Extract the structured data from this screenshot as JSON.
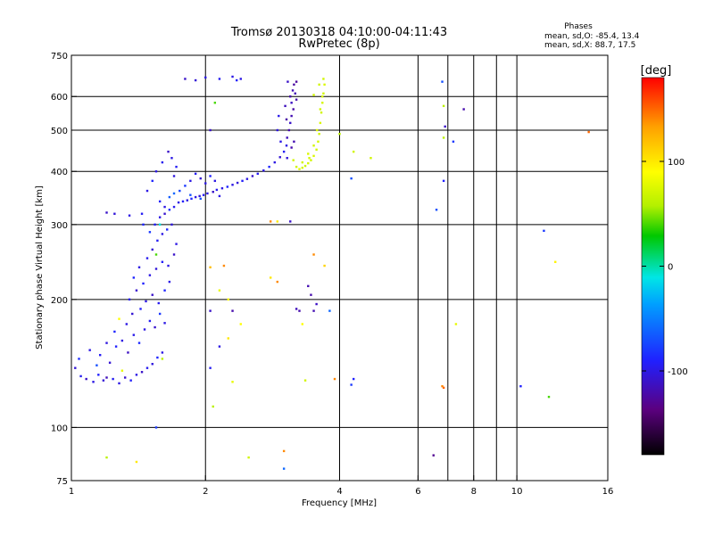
{
  "chart_data": {
    "type": "scatter",
    "title": "Tromsø 20130318 04:10:00-04:11:43",
    "subtitle": "RwPretec (8p)",
    "legend_title": "Phases",
    "legend_lines": [
      "mean, sd,O: -85.4, 13.4",
      "mean, sd,X:  88.7, 17.5"
    ],
    "xlabel": "Frequency [MHz]",
    "ylabel": "Stationary phase Virtual Height [km]",
    "x_scale": "log",
    "y_scale": "log",
    "xlim": [
      1,
      16
    ],
    "ylim": [
      75,
      750
    ],
    "x_ticks": [
      1,
      2,
      4,
      6,
      8,
      10,
      16
    ],
    "x_tick_labels": [
      "1",
      "2",
      "4",
      "6",
      "8",
      "10",
      "16"
    ],
    "x_grid": [
      2,
      4,
      6,
      7,
      8,
      9,
      10
    ],
    "y_ticks": [
      75,
      100,
      200,
      300,
      400,
      500,
      600,
      750
    ],
    "y_tick_labels": [
      "75",
      "100",
      "200",
      "300",
      "400",
      "500",
      "600",
      "750"
    ],
    "y_grid": [
      100,
      200,
      300,
      400,
      500,
      600
    ],
    "grid": true,
    "colorbar": {
      "label": "[deg]",
      "range": [
        -180,
        180
      ],
      "ticks": [
        100,
        0,
        -100
      ],
      "tick_labels": [
        "100",
        "0",
        "-100"
      ],
      "colors": [
        "#000000",
        "#5b007f",
        "#2020ff",
        "#00a0ff",
        "#00e6e6",
        "#00c800",
        "#b4f000",
        "#ffff00",
        "#ffa000",
        "#ff0000"
      ],
      "stops": [
        0,
        0.12,
        0.25,
        0.4,
        0.47,
        0.58,
        0.66,
        0.75,
        0.87,
        1
      ]
    },
    "series": [
      {
        "points": [
          [
            1.02,
            138,
            -105
          ],
          [
            1.05,
            132,
            -95
          ],
          [
            1.08,
            130,
            -110
          ],
          [
            1.12,
            128,
            -100
          ],
          [
            1.15,
            133,
            -90
          ],
          [
            1.18,
            129,
            -105
          ],
          [
            1.2,
            131,
            -115
          ],
          [
            1.24,
            130,
            -95
          ],
          [
            1.28,
            127,
            -100
          ],
          [
            1.32,
            131,
            -108
          ],
          [
            1.36,
            129,
            -92
          ],
          [
            1.4,
            133,
            -100
          ],
          [
            1.44,
            135,
            -110
          ],
          [
            1.48,
            138,
            -96
          ],
          [
            1.52,
            141,
            -102
          ],
          [
            1.56,
            146,
            -88
          ],
          [
            1.6,
            150,
            -100
          ],
          [
            1.04,
            145,
            -85
          ],
          [
            1.1,
            152,
            -100
          ],
          [
            1.16,
            148,
            -94
          ],
          [
            1.22,
            142,
            -106
          ],
          [
            1.26,
            155,
            -90
          ],
          [
            1.3,
            160,
            -100
          ],
          [
            1.34,
            150,
            -112
          ],
          [
            1.38,
            165,
            -98
          ],
          [
            1.42,
            158,
            -86
          ],
          [
            1.46,
            170,
            -100
          ],
          [
            1.5,
            178,
            -95
          ],
          [
            1.54,
            172,
            -108
          ],
          [
            1.58,
            185,
            -80
          ],
          [
            1.62,
            176,
            -100
          ],
          [
            1.14,
            140,
            -70
          ],
          [
            1.2,
            158,
            -102
          ],
          [
            1.25,
            168,
            -88
          ],
          [
            1.33,
            175,
            -100
          ],
          [
            1.37,
            185,
            -106
          ],
          [
            1.43,
            190,
            -92
          ],
          [
            1.47,
            198,
            -100
          ],
          [
            1.52,
            205,
            -110
          ],
          [
            1.57,
            196,
            -96
          ],
          [
            1.62,
            210,
            -88
          ],
          [
            1.66,
            220,
            -100
          ],
          [
            1.35,
            200,
            -95
          ],
          [
            1.4,
            210,
            -108
          ],
          [
            1.45,
            218,
            -90
          ],
          [
            1.5,
            228,
            -100
          ],
          [
            1.55,
            236,
            -104
          ],
          [
            1.6,
            245,
            -92
          ],
          [
            1.65,
            240,
            -100
          ],
          [
            1.7,
            255,
            -110
          ],
          [
            1.38,
            225,
            -88
          ],
          [
            1.42,
            238,
            -100
          ],
          [
            1.48,
            250,
            -96
          ],
          [
            1.52,
            262,
            -106
          ],
          [
            1.56,
            275,
            -94
          ],
          [
            1.6,
            285,
            -100
          ],
          [
            1.64,
            292,
            -88
          ],
          [
            1.68,
            300,
            -102
          ],
          [
            1.72,
            270,
            -100
          ],
          [
            1.5,
            288,
            -80
          ],
          [
            1.54,
            300,
            -92
          ],
          [
            1.58,
            312,
            -100
          ],
          [
            1.62,
            318,
            -108
          ],
          [
            1.66,
            325,
            -84
          ],
          [
            1.7,
            330,
            -96
          ],
          [
            1.74,
            338,
            -100
          ],
          [
            1.45,
            300,
            -88
          ],
          [
            1.44,
            318,
            -94
          ],
          [
            1.35,
            315,
            -100
          ],
          [
            1.25,
            318,
            -104
          ],
          [
            1.2,
            320,
            -110
          ],
          [
            1.78,
            340,
            -92
          ],
          [
            1.82,
            342,
            -100
          ],
          [
            1.86,
            345,
            -88
          ],
          [
            1.9,
            348,
            -100
          ],
          [
            1.94,
            350,
            -106
          ],
          [
            1.98,
            352,
            -94
          ],
          [
            2.02,
            355,
            -100
          ],
          [
            2.08,
            358,
            -110
          ],
          [
            2.12,
            362,
            -96
          ],
          [
            2.18,
            365,
            -100
          ],
          [
            2.24,
            368,
            -88
          ],
          [
            2.3,
            372,
            -100
          ],
          [
            2.36,
            376,
            -104
          ],
          [
            2.42,
            380,
            -92
          ],
          [
            2.48,
            384,
            -100
          ],
          [
            2.55,
            390,
            -108
          ],
          [
            2.62,
            395,
            -96
          ],
          [
            2.7,
            402,
            -100
          ],
          [
            2.78,
            410,
            -88
          ],
          [
            2.86,
            420,
            -100
          ],
          [
            2.94,
            432,
            -106
          ],
          [
            3.0,
            445,
            -94
          ],
          [
            3.04,
            460,
            -100
          ],
          [
            1.75,
            360,
            -75
          ],
          [
            1.8,
            370,
            -80
          ],
          [
            1.85,
            380,
            -100
          ],
          [
            1.9,
            395,
            -95
          ],
          [
            1.95,
            385,
            -105
          ],
          [
            2.0,
            375,
            -100
          ],
          [
            2.05,
            390,
            -90
          ],
          [
            2.1,
            380,
            -100
          ],
          [
            1.7,
            390,
            -102
          ],
          [
            1.72,
            410,
            -94
          ],
          [
            1.68,
            430,
            -100
          ],
          [
            1.65,
            445,
            -110
          ],
          [
            1.6,
            420,
            -96
          ],
          [
            1.55,
            400,
            -100
          ],
          [
            1.52,
            380,
            -88
          ],
          [
            1.48,
            360,
            -100
          ],
          [
            1.58,
            340,
            -92
          ],
          [
            1.62,
            330,
            -100
          ],
          [
            1.66,
            348,
            -65
          ],
          [
            1.7,
            355,
            -60
          ],
          [
            1.85,
            352,
            -70
          ],
          [
            1.95,
            345,
            -68
          ],
          [
            2.15,
            350,
            -100
          ],
          [
            3.05,
            480,
            -115
          ],
          [
            3.08,
            500,
            -120
          ],
          [
            3.1,
            520,
            -110
          ],
          [
            3.12,
            540,
            -118
          ],
          [
            3.15,
            560,
            -122
          ],
          [
            3.12,
            580,
            -112
          ],
          [
            3.1,
            600,
            -120
          ],
          [
            3.14,
            620,
            -116
          ],
          [
            3.16,
            640,
            -124
          ],
          [
            3.06,
            650,
            -110
          ],
          [
            3.18,
            610,
            -118
          ],
          [
            3.2,
            590,
            -120
          ],
          [
            3.02,
            570,
            -114
          ],
          [
            3.04,
            530,
            -122
          ],
          [
            3.2,
            650,
            -126
          ],
          [
            3.16,
            470,
            -118
          ],
          [
            3.12,
            455,
            -120
          ],
          [
            3.05,
            430,
            -105
          ],
          [
            2.95,
            470,
            -100
          ],
          [
            2.9,
            500,
            -102
          ],
          [
            2.92,
            540,
            -98
          ],
          [
            3.2,
            410,
            70
          ],
          [
            3.25,
            405,
            75
          ],
          [
            3.3,
            408,
            70
          ],
          [
            3.35,
            412,
            68
          ],
          [
            3.4,
            418,
            72
          ],
          [
            3.45,
            425,
            70
          ],
          [
            3.5,
            435,
            74
          ],
          [
            3.55,
            450,
            70
          ],
          [
            3.58,
            470,
            72
          ],
          [
            3.6,
            490,
            70
          ],
          [
            3.62,
            520,
            74
          ],
          [
            3.64,
            550,
            70
          ],
          [
            3.66,
            580,
            72
          ],
          [
            3.68,
            610,
            70
          ],
          [
            3.7,
            640,
            74
          ],
          [
            3.68,
            660,
            70
          ],
          [
            3.3,
            420,
            70
          ],
          [
            3.42,
            430,
            72
          ],
          [
            3.5,
            460,
            70
          ],
          [
            3.56,
            500,
            76
          ],
          [
            3.62,
            560,
            70
          ],
          [
            3.66,
            600,
            72
          ],
          [
            3.6,
            640,
            70
          ],
          [
            3.4,
            440,
            74
          ],
          [
            3.15,
            425,
            70
          ],
          [
            3.5,
            605,
            70
          ],
          [
            1.8,
            660,
            -110
          ],
          [
            1.9,
            655,
            -105
          ],
          [
            2.0,
            665,
            -100
          ],
          [
            2.15,
            660,
            -95
          ],
          [
            2.3,
            668,
            -100
          ],
          [
            2.35,
            655,
            -92
          ],
          [
            2.4,
            660,
            -100
          ],
          [
            2.1,
            580,
            40
          ],
          [
            2.05,
            500,
            -110
          ],
          [
            4.0,
            490,
            60
          ],
          [
            4.3,
            445,
            70
          ],
          [
            4.7,
            430,
            70
          ],
          [
            4.25,
            385,
            -70
          ],
          [
            6.8,
            650,
            -70
          ],
          [
            6.85,
            570,
            60
          ],
          [
            6.9,
            510,
            -110
          ],
          [
            6.85,
            480,
            60
          ],
          [
            7.2,
            470,
            -80
          ],
          [
            7.6,
            560,
            -120
          ],
          [
            6.6,
            325,
            -70
          ],
          [
            6.85,
            380,
            -90
          ],
          [
            14.5,
            495,
            150
          ],
          [
            11.5,
            290,
            -80
          ],
          [
            12.2,
            245,
            95
          ],
          [
            2.2,
            240,
            140
          ],
          [
            2.05,
            238,
            120
          ],
          [
            2.15,
            210,
            80
          ],
          [
            2.25,
            200,
            90
          ],
          [
            2.3,
            188,
            -120
          ],
          [
            2.05,
            188,
            -110
          ],
          [
            2.8,
            305,
            140
          ],
          [
            2.9,
            305,
            100
          ],
          [
            3.1,
            305,
            -110
          ],
          [
            3.5,
            255,
            140
          ],
          [
            3.7,
            240,
            110
          ],
          [
            3.2,
            190,
            -115
          ],
          [
            3.25,
            188,
            -120
          ],
          [
            3.5,
            188,
            -118
          ],
          [
            3.55,
            195,
            -112
          ],
          [
            3.45,
            205,
            -120
          ],
          [
            3.4,
            215,
            -118
          ],
          [
            3.8,
            188,
            -60
          ],
          [
            3.3,
            175,
            90
          ],
          [
            2.8,
            225,
            100
          ],
          [
            2.9,
            220,
            140
          ],
          [
            2.4,
            175,
            90
          ],
          [
            2.25,
            162,
            100
          ],
          [
            2.15,
            155,
            -100
          ],
          [
            2.05,
            138,
            -95
          ],
          [
            2.08,
            112,
            60
          ],
          [
            2.3,
            128,
            80
          ],
          [
            3.35,
            129,
            70
          ],
          [
            3.9,
            130,
            140
          ],
          [
            4.3,
            130,
            -90
          ],
          [
            4.25,
            126,
            -80
          ],
          [
            6.8,
            125,
            140
          ],
          [
            6.85,
            124,
            150
          ],
          [
            7.3,
            175,
            80
          ],
          [
            10.2,
            125,
            -90
          ],
          [
            11.8,
            118,
            40
          ],
          [
            3.0,
            88,
            140
          ],
          [
            3.0,
            80,
            -60
          ],
          [
            6.5,
            86,
            -130
          ],
          [
            2.5,
            85,
            70
          ],
          [
            1.4,
            83,
            100
          ],
          [
            1.2,
            85,
            60
          ],
          [
            1.55,
            100,
            -80
          ],
          [
            1.6,
            145,
            60
          ],
          [
            1.3,
            136,
            80
          ],
          [
            1.28,
            180,
            90
          ],
          [
            1.55,
            255,
            40
          ],
          [
            1.58,
            300,
            -10
          ]
        ]
      }
    ]
  }
}
